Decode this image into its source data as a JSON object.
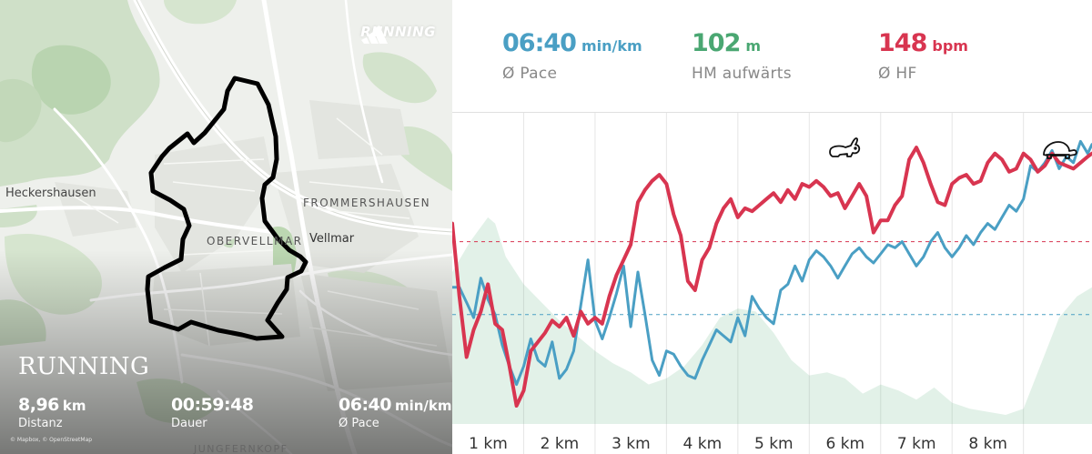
{
  "colors": {
    "pace": "#4a9fc4",
    "elevation": "#4aa772",
    "heart_rate": "#d83550",
    "map_bg": "#eef0ec",
    "route": "#000000"
  },
  "map": {
    "places": {
      "heckershausen": "Heckershausen",
      "frommershausen": "FROMMERSHAUSEN",
      "obervellmar": "OBERVELLMAR",
      "vellmar": "Vellmar",
      "jungfernkopf": "JUNGFERNKOPF"
    },
    "attribution": "© Mapbox, © OpenStreetMap"
  },
  "brand": {
    "logo_icon": "adidas-three-stripes-icon",
    "text": "RUNNING"
  },
  "activity": {
    "title": "RUNNING",
    "distance": {
      "value": "8,96",
      "unit": "km",
      "label": "Distanz"
    },
    "duration": {
      "value": "00:59:48",
      "label": "Dauer"
    },
    "pace": {
      "value": "06:40",
      "unit": "min/km",
      "label": "Ø Pace"
    }
  },
  "summary": {
    "pace": {
      "value": "06:40",
      "unit": "min/km",
      "label": "Ø Pace"
    },
    "elevation": {
      "value": "102",
      "unit": "m",
      "label": "HM aufwärts"
    },
    "heart_rate": {
      "value": "148",
      "unit": "bpm",
      "label": "Ø HF"
    }
  },
  "chart_data": {
    "type": "line",
    "x_unit": "km",
    "x_range": [
      0,
      8.96
    ],
    "tick_labels": [
      "1 km",
      "2 km",
      "3 km",
      "4 km",
      "5 km",
      "6 km",
      "7 km",
      "8 km"
    ],
    "tick_values": [
      1,
      2,
      3,
      4,
      5,
      6,
      7,
      8
    ],
    "grid": "vertical",
    "icons": {
      "fast": "rabbit-icon",
      "slow": "turtle-icon"
    },
    "series": [
      {
        "key": "heart_rate",
        "kind": "line",
        "scale": [
          0,
          1
        ],
        "average": 0.6,
        "x": [
          0,
          0.1,
          0.2,
          0.3,
          0.4,
          0.5,
          0.6,
          0.7,
          0.8,
          0.9,
          1.0,
          1.1,
          1.2,
          1.3,
          1.4,
          1.5,
          1.6,
          1.7,
          1.8,
          1.9,
          2.0,
          2.1,
          2.2,
          2.3,
          2.4,
          2.5,
          2.6,
          2.7,
          2.8,
          2.9,
          3.0,
          3.1,
          3.2,
          3.3,
          3.4,
          3.5,
          3.6,
          3.7,
          3.8,
          3.9,
          4.0,
          4.1,
          4.2,
          4.3,
          4.4,
          4.5,
          4.6,
          4.7,
          4.8,
          4.9,
          5.0,
          5.1,
          5.2,
          5.3,
          5.4,
          5.5,
          5.6,
          5.7,
          5.8,
          5.9,
          6.0,
          6.1,
          6.2,
          6.3,
          6.4,
          6.5,
          6.6,
          6.7,
          6.8,
          6.9,
          7.0,
          7.1,
          7.2,
          7.3,
          7.4,
          7.5,
          7.6,
          7.7,
          7.8,
          7.9,
          8.0,
          8.1,
          8.2,
          8.3,
          8.4,
          8.5,
          8.6,
          8.7,
          8.8,
          8.9,
          8.96
        ],
        "values": [
          0.66,
          0.42,
          0.22,
          0.31,
          0.37,
          0.46,
          0.33,
          0.31,
          0.19,
          0.06,
          0.11,
          0.24,
          0.27,
          0.3,
          0.34,
          0.32,
          0.35,
          0.29,
          0.37,
          0.33,
          0.35,
          0.33,
          0.42,
          0.49,
          0.54,
          0.59,
          0.73,
          0.77,
          0.8,
          0.82,
          0.79,
          0.69,
          0.62,
          0.47,
          0.44,
          0.54,
          0.58,
          0.66,
          0.71,
          0.74,
          0.68,
          0.71,
          0.7,
          0.72,
          0.74,
          0.76,
          0.73,
          0.77,
          0.74,
          0.79,
          0.78,
          0.8,
          0.78,
          0.75,
          0.76,
          0.71,
          0.75,
          0.79,
          0.75,
          0.63,
          0.67,
          0.67,
          0.72,
          0.75,
          0.87,
          0.91,
          0.86,
          0.79,
          0.73,
          0.72,
          0.79,
          0.81,
          0.82,
          0.79,
          0.8,
          0.86,
          0.89,
          0.87,
          0.83,
          0.84,
          0.89,
          0.87,
          0.83,
          0.85,
          0.89,
          0.86,
          0.85,
          0.84,
          0.86,
          0.88,
          0.89
        ]
      },
      {
        "key": "pace",
        "kind": "line",
        "scale": [
          0,
          1
        ],
        "average": 0.36,
        "x": [
          0,
          0.1,
          0.2,
          0.3,
          0.4,
          0.5,
          0.6,
          0.7,
          0.8,
          0.9,
          1.0,
          1.1,
          1.2,
          1.3,
          1.4,
          1.5,
          1.6,
          1.7,
          1.8,
          1.9,
          2.0,
          2.1,
          2.2,
          2.3,
          2.4,
          2.5,
          2.6,
          2.7,
          2.8,
          2.9,
          3.0,
          3.1,
          3.2,
          3.3,
          3.4,
          3.5,
          3.6,
          3.7,
          3.8,
          3.9,
          4.0,
          4.1,
          4.2,
          4.3,
          4.4,
          4.5,
          4.6,
          4.7,
          4.8,
          4.9,
          5.0,
          5.1,
          5.2,
          5.3,
          5.4,
          5.5,
          5.6,
          5.7,
          5.8,
          5.9,
          6.0,
          6.1,
          6.2,
          6.3,
          6.4,
          6.5,
          6.6,
          6.7,
          6.8,
          6.9,
          7.0,
          7.1,
          7.2,
          7.3,
          7.4,
          7.5,
          7.6,
          7.7,
          7.8,
          7.9,
          8.0,
          8.1,
          8.2,
          8.3,
          8.4,
          8.5,
          8.6,
          8.7,
          8.8,
          8.9,
          8.96
        ],
        "values": [
          0.45,
          0.45,
          0.4,
          0.35,
          0.48,
          0.41,
          0.36,
          0.26,
          0.19,
          0.13,
          0.19,
          0.28,
          0.21,
          0.19,
          0.27,
          0.15,
          0.18,
          0.24,
          0.39,
          0.54,
          0.34,
          0.28,
          0.35,
          0.43,
          0.52,
          0.32,
          0.5,
          0.36,
          0.21,
          0.16,
          0.24,
          0.23,
          0.19,
          0.16,
          0.15,
          0.21,
          0.26,
          0.31,
          0.29,
          0.27,
          0.35,
          0.29,
          0.42,
          0.38,
          0.35,
          0.33,
          0.44,
          0.46,
          0.52,
          0.47,
          0.54,
          0.57,
          0.55,
          0.52,
          0.48,
          0.52,
          0.56,
          0.58,
          0.55,
          0.53,
          0.56,
          0.59,
          0.58,
          0.6,
          0.56,
          0.52,
          0.55,
          0.6,
          0.63,
          0.58,
          0.55,
          0.58,
          0.62,
          0.59,
          0.63,
          0.66,
          0.64,
          0.68,
          0.72,
          0.7,
          0.74,
          0.85,
          0.83,
          0.86,
          0.9,
          0.84,
          0.88,
          0.86,
          0.93,
          0.89,
          0.92
        ]
      },
      {
        "key": "elevation",
        "kind": "area",
        "scale": [
          0,
          1
        ],
        "x": [
          0,
          0.25,
          0.5,
          0.6,
          0.75,
          1.0,
          1.25,
          1.5,
          1.75,
          2.0,
          2.25,
          2.5,
          2.75,
          3.0,
          3.25,
          3.5,
          3.75,
          4.0,
          4.25,
          4.5,
          4.75,
          5.0,
          5.25,
          5.5,
          5.75,
          6.0,
          6.25,
          6.5,
          6.75,
          7.0,
          7.25,
          7.5,
          7.75,
          8.0,
          8.25,
          8.5,
          8.75,
          8.96
        ],
        "values": [
          0.5,
          0.6,
          0.68,
          0.66,
          0.55,
          0.46,
          0.4,
          0.34,
          0.29,
          0.24,
          0.2,
          0.17,
          0.13,
          0.15,
          0.19,
          0.26,
          0.35,
          0.38,
          0.37,
          0.3,
          0.21,
          0.16,
          0.17,
          0.15,
          0.1,
          0.13,
          0.11,
          0.08,
          0.12,
          0.07,
          0.05,
          0.04,
          0.03,
          0.05,
          0.2,
          0.35,
          0.42,
          0.45
        ]
      }
    ]
  }
}
